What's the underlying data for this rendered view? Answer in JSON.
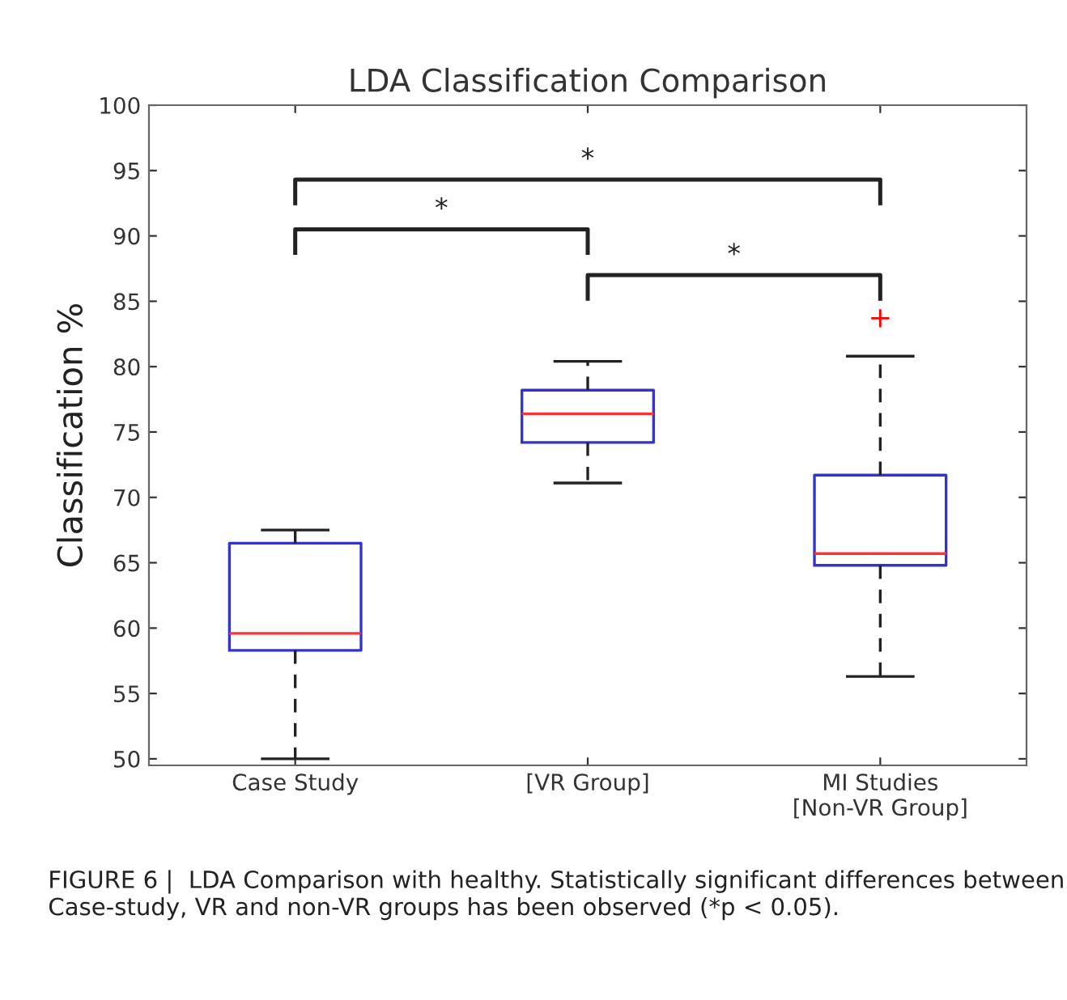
{
  "chart_data": {
    "type": "box",
    "title": "LDA Classification Comparison",
    "ylabel": "Classification %",
    "categories": [
      "Case Study",
      "[VR Group]",
      "MI Studies\n[Non-VR Group]"
    ],
    "boxes": [
      {
        "low": 50,
        "q1": 58.3,
        "median": 59.6,
        "q3": 66.5,
        "high": 67.5
      },
      {
        "low": 71.1,
        "q1": 74.2,
        "median": 76.4,
        "q3": 78.2,
        "high": 80.4
      },
      {
        "low": 56.3,
        "q1": 64.8,
        "median": 65.7,
        "q3": 71.7,
        "high": 80.8,
        "outliers": [
          83.7
        ]
      }
    ],
    "ylim": [
      49.5,
      100
    ],
    "yticks": [
      50,
      55,
      60,
      65,
      70,
      75,
      80,
      85,
      90,
      95,
      100
    ],
    "grid": false,
    "annotations": [
      "*",
      "*",
      "*",
      "FIGURE 6 |  LDA Comparison with healthy. Statistically significant differences between Case-study, VR and non-VR groups has been observed (*p < 0.05)."
    ]
  }
}
